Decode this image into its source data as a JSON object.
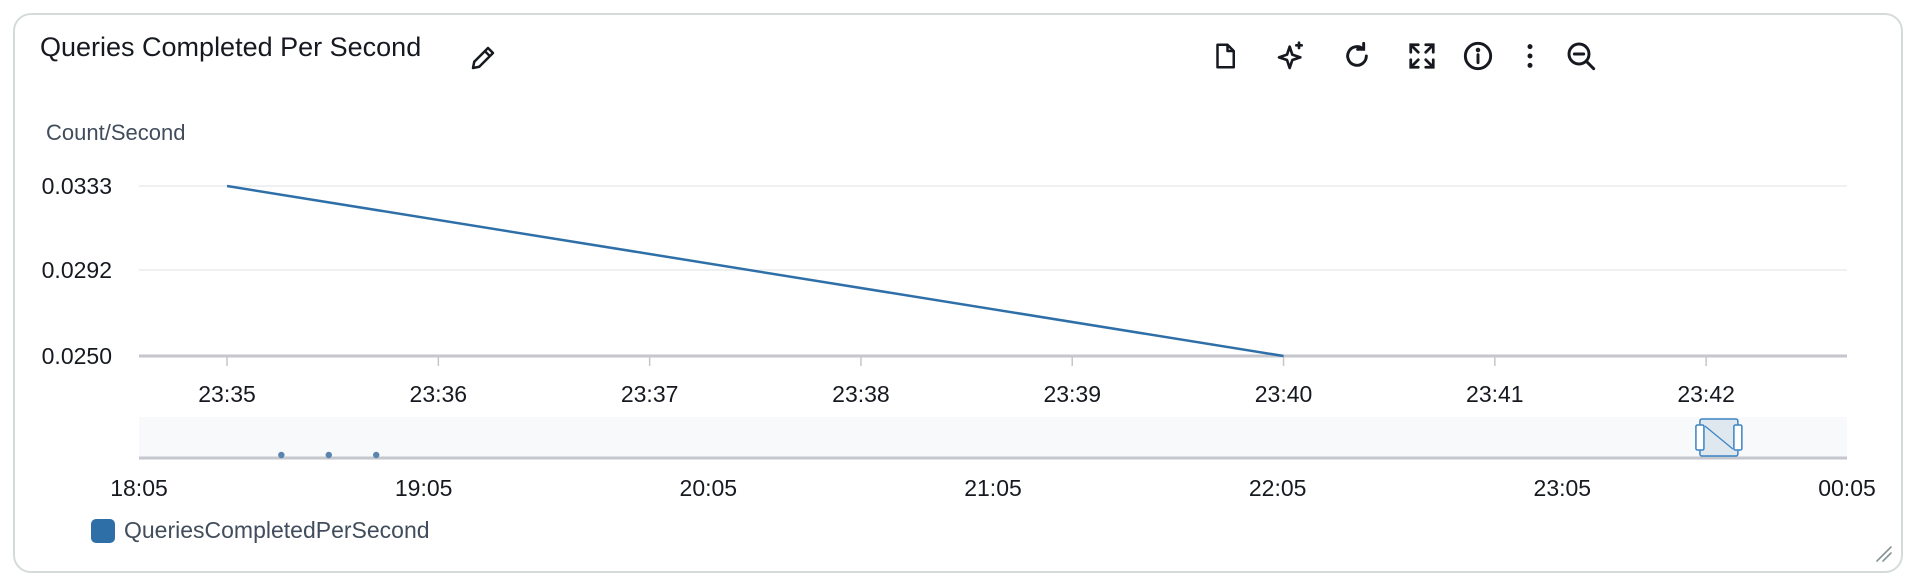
{
  "widget": {
    "title": "Queries Completed Per Second",
    "icons": {
      "edit": "pencil-icon",
      "toolbar": [
        "document-icon",
        "sparkle-icon",
        "refresh-icon",
        "fullscreen-icon",
        "info-icon",
        "more-vertical-icon",
        "zoom-out-icon"
      ]
    }
  },
  "chart_data": {
    "type": "line",
    "title": "",
    "ylabel": "Count/Second",
    "xlabel": "",
    "ylim": [
      0.025,
      0.0333
    ],
    "xlim": [
      "23:34:35",
      "23:42:40"
    ],
    "y_ticks": [
      "0.0333",
      "0.0292",
      "0.0250"
    ],
    "x_ticks": [
      "23:35",
      "23:36",
      "23:37",
      "23:38",
      "23:39",
      "23:40",
      "23:41",
      "23:42"
    ],
    "series": [
      {
        "name": "QueriesCompletedPerSecond",
        "color": "#2e6fa8",
        "x": [
          "23:35",
          "23:40"
        ],
        "y": [
          0.0333,
          0.025
        ]
      }
    ],
    "grid": true,
    "legend_position": "bottom-left",
    "navigator": {
      "range": [
        "18:05",
        "00:05"
      ],
      "ticks": [
        "18:05",
        "19:05",
        "20:05",
        "21:05",
        "22:05",
        "23:05",
        "00:05"
      ],
      "points": [
        "18:35",
        "18:45",
        "18:55"
      ],
      "selection": [
        "23:34",
        "23:42"
      ]
    }
  }
}
